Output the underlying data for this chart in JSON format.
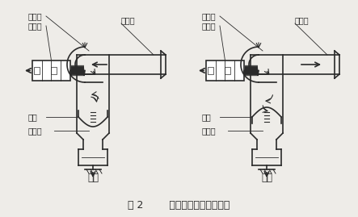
{
  "title": "图 2        脉冲阀结构和工作原理",
  "label_maichong": "脉冲阀",
  "label_dianci": "电磁阀",
  "label_output": "输出管",
  "label_membrane": "膜片",
  "label_orifice": "节流孔",
  "label_closed": "关闭",
  "label_open": "开启",
  "bg_color": "#eeece8",
  "line_color": "#2a2a2a",
  "font_size_small": 7.0,
  "font_size_state": 8.5,
  "font_size_title": 9.0
}
